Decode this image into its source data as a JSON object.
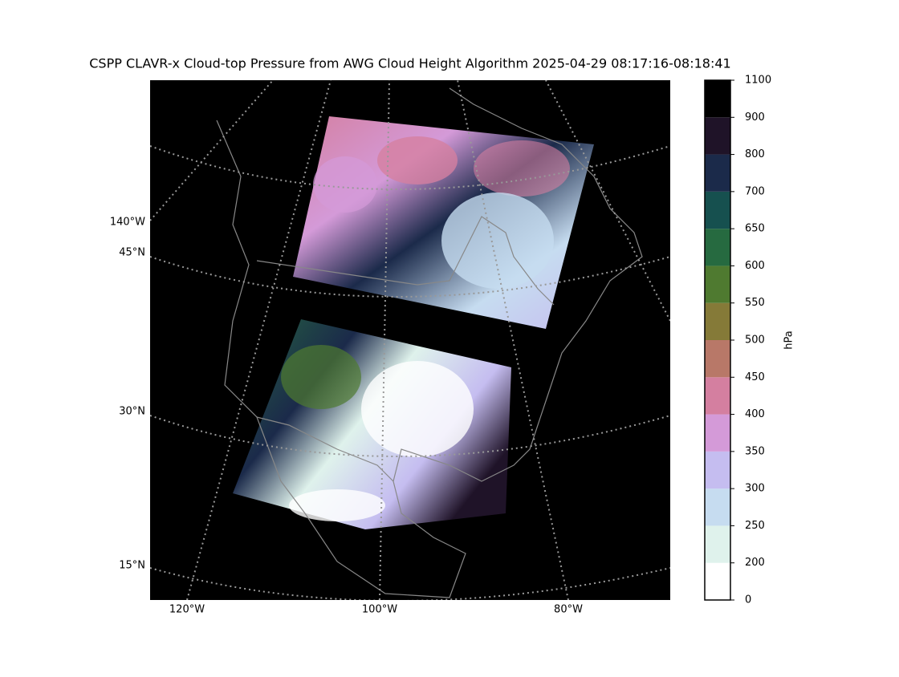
{
  "title": "CSPP CLAVR-x Cloud-top Pressure from AWG Cloud Height Algorithm 2025-04-29 08:17:16-08:18:41",
  "map": {
    "edge_lon_label": "140°W",
    "lat_labels": [
      "45°N",
      "30°N",
      "15°N"
    ],
    "lon_labels": [
      "120°W",
      "100°W",
      "80°W"
    ]
  },
  "colorbar": {
    "label": "hPa",
    "ticks": [
      0,
      200,
      250,
      300,
      350,
      400,
      450,
      500,
      550,
      600,
      650,
      700,
      800,
      900,
      1100
    ],
    "colors": [
      "#ffffff",
      "#dff2ec",
      "#c6dcf0",
      "#c5bdf0",
      "#d49ad8",
      "#d47fa0",
      "#b87868",
      "#857a38",
      "#4f7a30",
      "#266a40",
      "#16504f",
      "#1b2a4a",
      "#1f1328",
      "#000000"
    ]
  }
}
